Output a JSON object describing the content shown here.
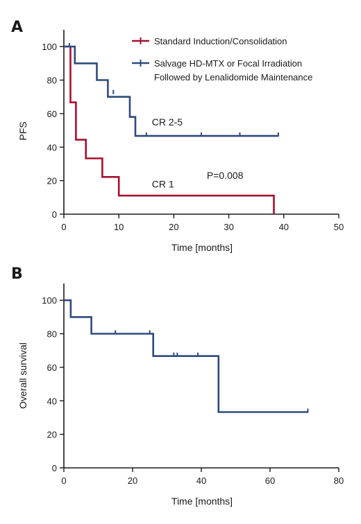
{
  "colors": {
    "standard": "#a8102e",
    "salvage": "#2e4a7d",
    "axis": "#1a1a1a"
  },
  "chart_data": [
    {
      "panel": "A",
      "type": "line",
      "step": true,
      "xlabel": "Time [months]",
      "ylabel": "PFS",
      "xlim": [
        0,
        50
      ],
      "ylim": [
        0,
        110
      ],
      "xticks": [
        0,
        10,
        20,
        30,
        40,
        50
      ],
      "yticks": [
        0,
        20,
        40,
        60,
        80,
        100
      ],
      "grid": false,
      "legend_position": "top-right",
      "series": [
        {
          "name": "Standard Induction/Consolidation",
          "color": "#a8102e",
          "steps": [
            [
              0,
              100
            ],
            [
              1.2,
              100
            ],
            [
              1.2,
              66.7
            ],
            [
              2.2,
              66.7
            ],
            [
              2.2,
              44.4
            ],
            [
              4,
              44.4
            ],
            [
              4,
              33.3
            ],
            [
              7,
              33.3
            ],
            [
              7,
              22.2
            ],
            [
              10,
              22.2
            ],
            [
              10,
              11.1
            ],
            [
              38.2,
              11.1
            ],
            [
              38.2,
              0
            ]
          ],
          "censored": []
        },
        {
          "name": "Salvage HD-MTX or Focal Irradiation Followed by Lenalidomide Maintenance",
          "legend_lines": [
            "Salvage HD-MTX or Focal Irradiation",
            "Followed by Lenalidomide Maintenance"
          ],
          "color": "#2e4a7d",
          "steps": [
            [
              0,
              100
            ],
            [
              2,
              100
            ],
            [
              2,
              90
            ],
            [
              6,
              90
            ],
            [
              6,
              80
            ],
            [
              8,
              80
            ],
            [
              8,
              70
            ],
            [
              12,
              70
            ],
            [
              12,
              58
            ],
            [
              13,
              58
            ],
            [
              13,
              46.7
            ],
            [
              39,
              46.7
            ]
          ],
          "censored": [
            [
              1,
              100
            ],
            [
              9,
              72
            ],
            [
              15,
              46.7
            ],
            [
              25,
              46.7
            ],
            [
              32,
              46.7
            ],
            [
              39,
              46.7
            ]
          ]
        }
      ],
      "annotations": [
        {
          "text": "CR 2-5",
          "x": 16,
          "y": 53
        },
        {
          "text": "CR 1",
          "x": 16,
          "y": 16
        },
        {
          "text": "P=0.008",
          "x": 26,
          "y": 21
        }
      ]
    },
    {
      "panel": "B",
      "type": "line",
      "step": true,
      "xlabel": "Time [months]",
      "ylabel": "Overall survival",
      "xlim": [
        0,
        80
      ],
      "ylim": [
        0,
        110
      ],
      "xticks": [
        0,
        20,
        40,
        60,
        80
      ],
      "yticks": [
        0,
        20,
        40,
        60,
        80,
        100
      ],
      "grid": false,
      "series": [
        {
          "color": "#2e4a7d",
          "steps": [
            [
              0,
              100
            ],
            [
              2,
              100
            ],
            [
              2,
              90
            ],
            [
              8,
              90
            ],
            [
              8,
              80
            ],
            [
              26,
              80
            ],
            [
              26,
              66.7
            ],
            [
              45,
              66.7
            ],
            [
              45,
              33.3
            ],
            [
              71,
              33.3
            ]
          ],
          "censored": [
            [
              15,
              80
            ],
            [
              25,
              80
            ],
            [
              32,
              66.7
            ],
            [
              33,
              66.7
            ],
            [
              39,
              66.7
            ],
            [
              71,
              33.3
            ]
          ]
        }
      ]
    }
  ]
}
